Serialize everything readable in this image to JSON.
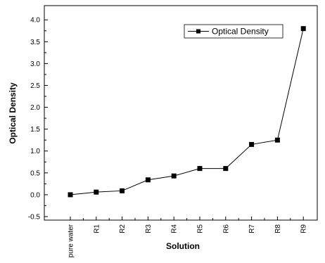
{
  "chart_data": {
    "type": "line",
    "title": "",
    "xlabel": "Solution",
    "ylabel": "Optical Density",
    "categories": [
      "pure water",
      "R1",
      "R2",
      "R3",
      "R4",
      "R5",
      "R6",
      "R7",
      "R8",
      "R9"
    ],
    "series": [
      {
        "name": "Optical Density",
        "values": [
          0.0,
          0.06,
          0.09,
          0.34,
          0.43,
          0.6,
          0.6,
          1.15,
          1.25,
          3.8
        ],
        "color": "#000000",
        "marker": "square"
      }
    ],
    "ylim": [
      -0.5,
      4.1
    ],
    "yticks": [
      "-0.5",
      "0.0",
      "0.5",
      "1.0",
      "1.5",
      "2.0",
      "2.5",
      "3.0",
      "3.5",
      "4.0"
    ],
    "grid": false,
    "legend_position": "top-right"
  }
}
